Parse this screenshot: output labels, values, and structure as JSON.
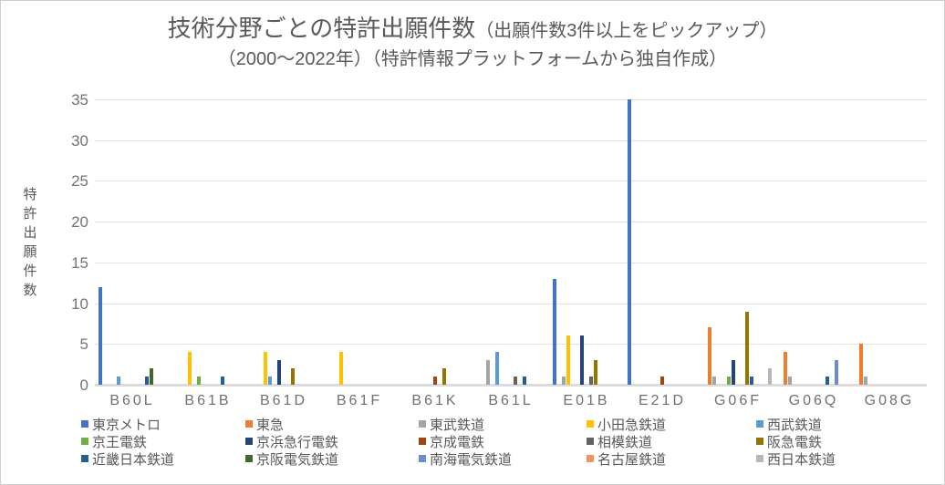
{
  "window": {
    "background": "#ffffff",
    "border_color": "#cfcfcf"
  },
  "chart_data": {
    "type": "bar",
    "title": {
      "main": "技術分野ごとの特許出願件数",
      "sub": "（出願件数3件以上をピックアップ）",
      "line2": "（2000～2022年）（特許情報プラットフォームから独自作成）"
    },
    "ylabel": "特許出願件数",
    "xlabel": "",
    "ylim": [
      0,
      35
    ],
    "ytick_step": 5,
    "yticks": [
      0,
      5,
      10,
      15,
      20,
      25,
      30,
      35
    ],
    "grid": true,
    "legend_position": "bottom",
    "categories": [
      "B60L",
      "B61B",
      "B61D",
      "B61F",
      "B61K",
      "B61L",
      "E01B",
      "E21D",
      "G06F",
      "G06Q",
      "G08G"
    ],
    "series": [
      {
        "name": "東京メトロ",
        "color": "#4472C4",
        "values": [
          12,
          0,
          0,
          0,
          0,
          0,
          13,
          35,
          0,
          0,
          0
        ]
      },
      {
        "name": "東急",
        "color": "#ED7D31",
        "values": [
          0,
          0,
          0,
          0,
          0,
          0,
          0,
          0,
          7,
          4,
          5
        ]
      },
      {
        "name": "東武鉄道",
        "color": "#A5A5A5",
        "values": [
          0,
          0,
          0,
          0,
          0,
          3,
          1,
          0,
          1,
          1,
          1
        ]
      },
      {
        "name": "小田急鉄道",
        "color": "#FFC000",
        "values": [
          0,
          4,
          4,
          4,
          0,
          0,
          6,
          0,
          0,
          0,
          0
        ]
      },
      {
        "name": "西武鉄道",
        "color": "#5B9BD5",
        "values": [
          1,
          0,
          1,
          0,
          0,
          4,
          0,
          0,
          0,
          0,
          0
        ]
      },
      {
        "name": "京王電鉄",
        "color": "#70AD47",
        "values": [
          0,
          1,
          0,
          0,
          0,
          0,
          0,
          0,
          1,
          0,
          0
        ]
      },
      {
        "name": "京浜急行電鉄",
        "color": "#264478",
        "values": [
          0,
          0,
          3,
          0,
          0,
          0,
          6,
          0,
          3,
          0,
          0
        ]
      },
      {
        "name": "京成電鉄",
        "color": "#9E480E",
        "values": [
          0,
          0,
          0,
          0,
          1,
          0,
          0,
          1,
          0,
          0,
          0
        ]
      },
      {
        "name": "相模鉄道",
        "color": "#636363",
        "values": [
          0,
          0,
          0,
          0,
          0,
          1,
          1,
          0,
          0,
          0,
          0
        ]
      },
      {
        "name": "阪急電鉄",
        "color": "#997300",
        "values": [
          0,
          0,
          2,
          0,
          2,
          0,
          3,
          0,
          9,
          0,
          0
        ]
      },
      {
        "name": "近畿日本鉄道",
        "color": "#255E91",
        "values": [
          1,
          1,
          0,
          0,
          0,
          1,
          0,
          0,
          1,
          1,
          0
        ]
      },
      {
        "name": "京阪電気鉄道",
        "color": "#43682B",
        "values": [
          2,
          0,
          0,
          0,
          0,
          0,
          0,
          0,
          0,
          0,
          0
        ]
      },
      {
        "name": "南海電気鉄道",
        "color": "#698ED0",
        "values": [
          0,
          0,
          0,
          0,
          0,
          0,
          0,
          0,
          0,
          3,
          0
        ]
      },
      {
        "name": "名古屋鉄道",
        "color": "#F1975A",
        "values": [
          0,
          0,
          0,
          0,
          0,
          0,
          0,
          0,
          0,
          0,
          0
        ]
      },
      {
        "name": "西日本鉄道",
        "color": "#B7B7B7",
        "values": [
          0,
          0,
          0,
          0,
          0,
          0,
          0,
          0,
          2,
          0,
          0
        ]
      }
    ]
  }
}
